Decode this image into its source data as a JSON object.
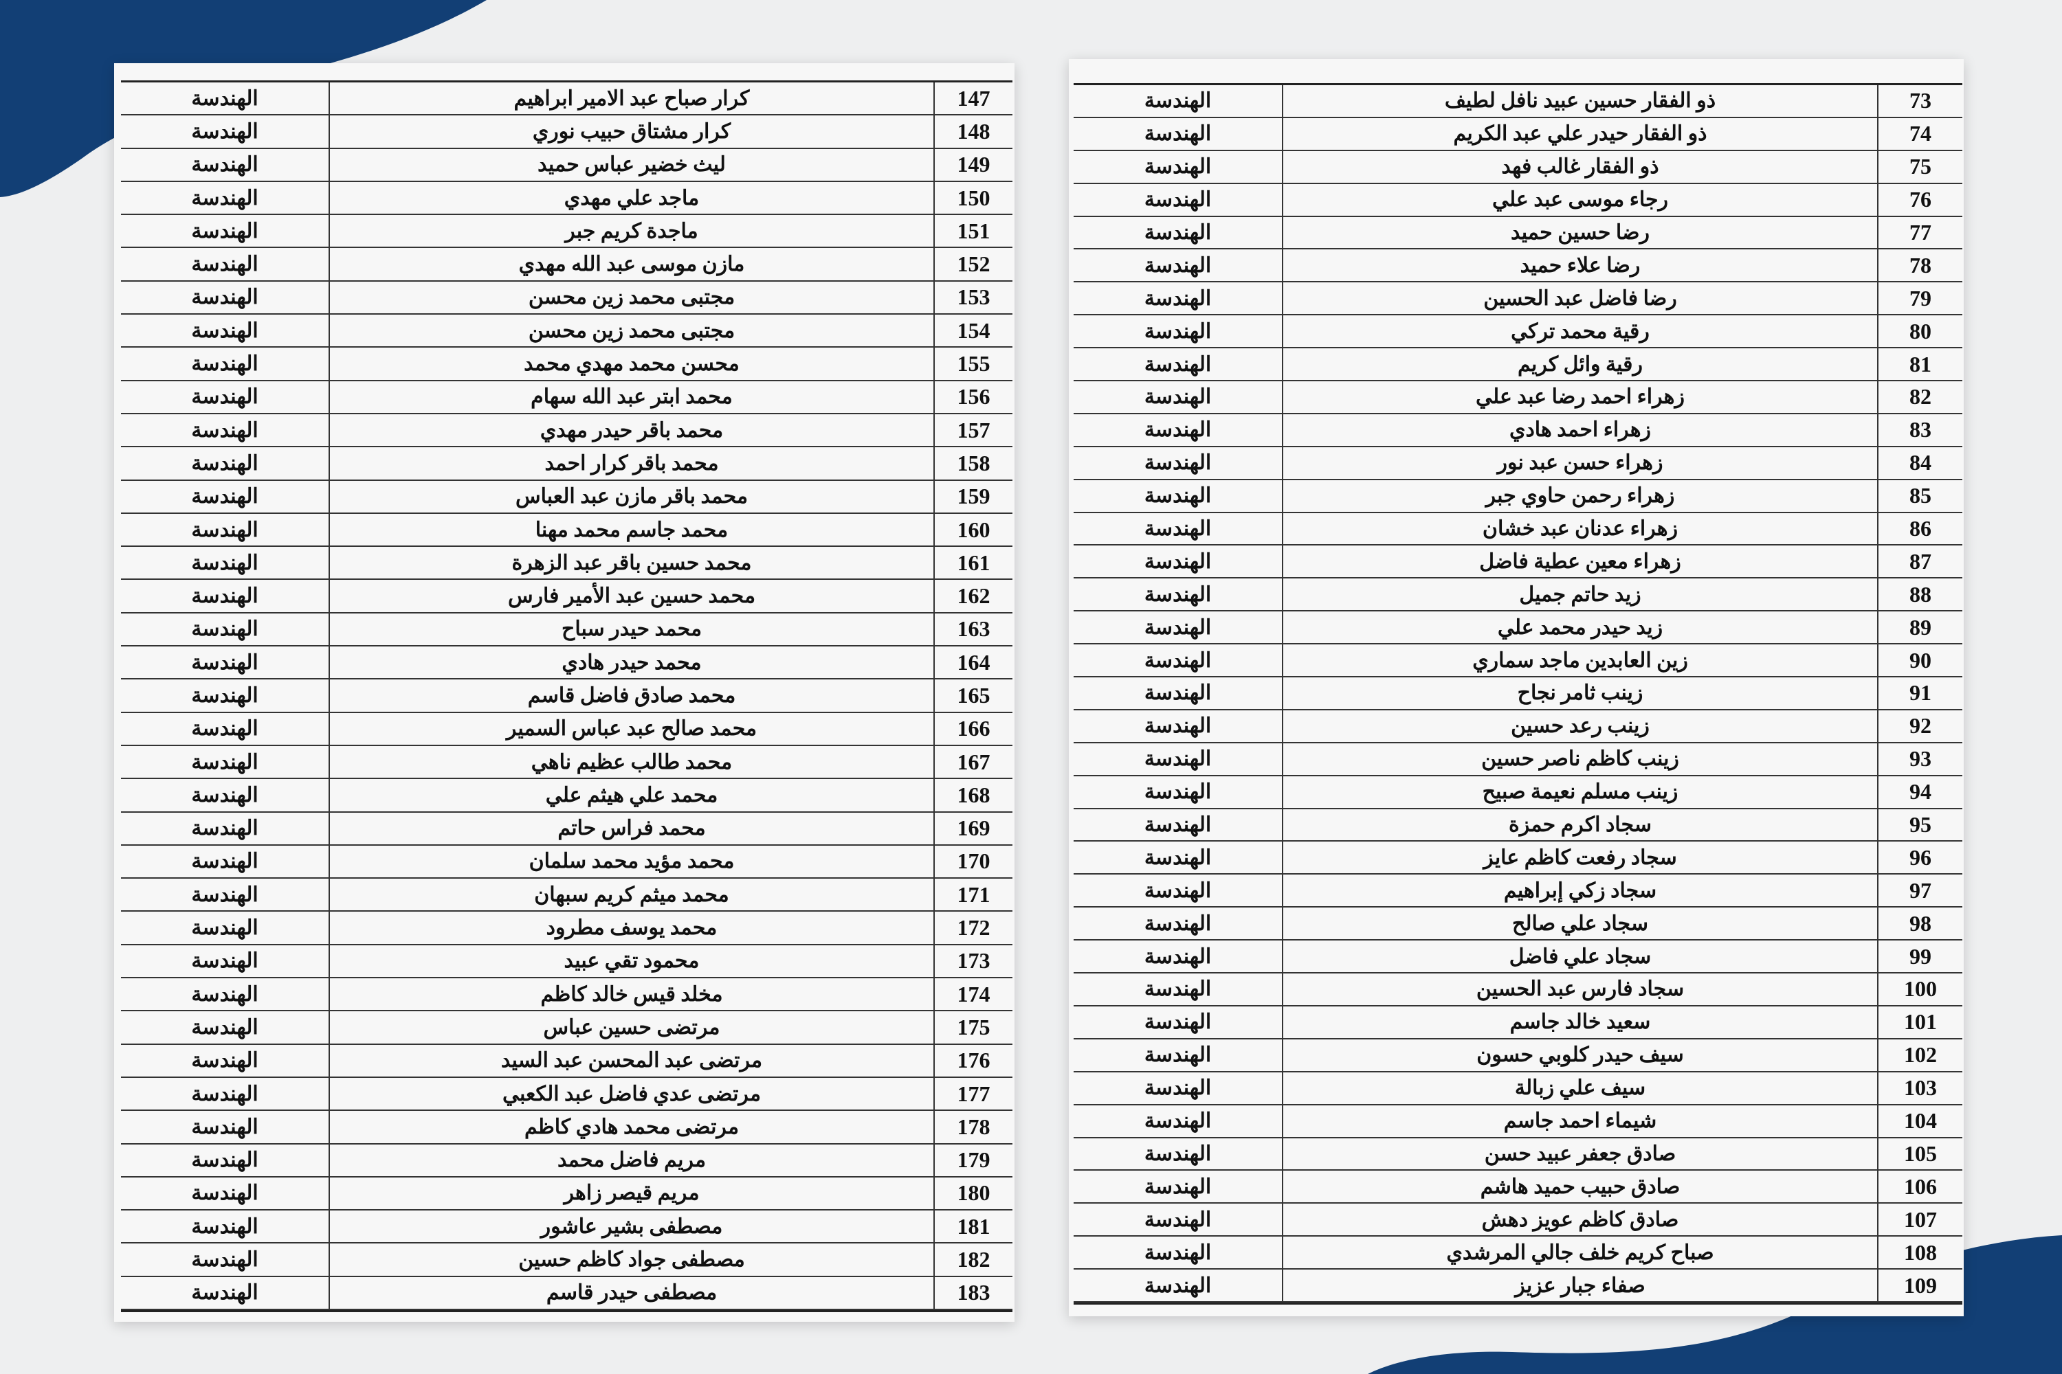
{
  "left_table": {
    "rows": [
      [
        147,
        "كرار صباح عبد الامير ابراهيم",
        "الهندسة"
      ],
      [
        148,
        "كرار مشتاق حبيب نوري",
        "الهندسة"
      ],
      [
        149,
        "ليث خضير عباس حميد",
        "الهندسة"
      ],
      [
        150,
        "ماجد علي مهدي",
        "الهندسة"
      ],
      [
        151,
        "ماجدة كريم جبر",
        "الهندسة"
      ],
      [
        152,
        "مازن موسى عبد الله مهدي",
        "الهندسة"
      ],
      [
        153,
        "مجتبى محمد زين محسن",
        "الهندسة"
      ],
      [
        154,
        "مجتبى محمد زين محسن",
        "الهندسة"
      ],
      [
        155,
        "محسن محمد مهدي محمد",
        "الهندسة"
      ],
      [
        156,
        "محمد ابتر عبد الله سهام",
        "الهندسة"
      ],
      [
        157,
        "محمد باقر حيدر مهدي",
        "الهندسة"
      ],
      [
        158,
        "محمد باقر كرار احمد",
        "الهندسة"
      ],
      [
        159,
        "محمد باقر مازن عبد العباس",
        "الهندسة"
      ],
      [
        160,
        "محمد جاسم محمد مهنا",
        "الهندسة"
      ],
      [
        161,
        "محمد حسين باقر عبد الزهرة",
        "الهندسة"
      ],
      [
        162,
        "محمد حسين عبد الأمير فارس",
        "الهندسة"
      ],
      [
        163,
        "محمد حيدر سباح",
        "الهندسة"
      ],
      [
        164,
        "محمد حيدر هادي",
        "الهندسة"
      ],
      [
        165,
        "محمد صادق فاضل قاسم",
        "الهندسة"
      ],
      [
        166,
        "محمد صالح عبد عباس السمير",
        "الهندسة"
      ],
      [
        167,
        "محمد طالب عظيم ناهي",
        "الهندسة"
      ],
      [
        168,
        "محمد علي هيثم علي",
        "الهندسة"
      ],
      [
        169,
        "محمد فراس حاتم",
        "الهندسة"
      ],
      [
        170,
        "محمد مؤيد محمد سلمان",
        "الهندسة"
      ],
      [
        171,
        "محمد ميثم كريم سبهان",
        "الهندسة"
      ],
      [
        172,
        "محمد يوسف مطرود",
        "الهندسة"
      ],
      [
        173,
        "محمود تقي عبيد",
        "الهندسة"
      ],
      [
        174,
        "مخلد قيس خالد كاظم",
        "الهندسة"
      ],
      [
        175,
        "مرتضى حسين عباس",
        "الهندسة"
      ],
      [
        176,
        "مرتضى عبد المحسن عبد السيد",
        "الهندسة"
      ],
      [
        177,
        "مرتضى عدي فاضل عبد الكعبي",
        "الهندسة"
      ],
      [
        178,
        "مرتضى محمد هادي كاظم",
        "الهندسة"
      ],
      [
        179,
        "مريم فاضل محمد",
        "الهندسة"
      ],
      [
        180,
        "مريم قيصر زاهر",
        "الهندسة"
      ],
      [
        181,
        "مصطفى بشير عاشور",
        "الهندسة"
      ],
      [
        182,
        "مصطفى جواد كاظم حسين",
        "الهندسة"
      ],
      [
        183,
        "مصطفى حيدر قاسم",
        "الهندسة"
      ]
    ]
  },
  "right_table": {
    "rows": [
      [
        73,
        "ذو الفقار حسين عبيد نافل لطيف",
        "الهندسة"
      ],
      [
        74,
        "ذو الفقار حيدر علي عبد الكريم",
        "الهندسة"
      ],
      [
        75,
        "ذو الفقار غالب فهد",
        "الهندسة"
      ],
      [
        76,
        "رجاء موسى عبد علي",
        "الهندسة"
      ],
      [
        77,
        "رضا حسين حميد",
        "الهندسة"
      ],
      [
        78,
        "رضا علاء حميد",
        "الهندسة"
      ],
      [
        79,
        "رضا فاضل عبد الحسين",
        "الهندسة"
      ],
      [
        80,
        "رقية محمد تركي",
        "الهندسة"
      ],
      [
        81,
        "رقية وائل كريم",
        "الهندسة"
      ],
      [
        82,
        "زهراء احمد رضا عبد علي",
        "الهندسة"
      ],
      [
        83,
        "زهراء احمد هادي",
        "الهندسة"
      ],
      [
        84,
        "زهراء حسن عبد نور",
        "الهندسة"
      ],
      [
        85,
        "زهراء رحمن حاوي جبر",
        "الهندسة"
      ],
      [
        86,
        "زهراء عدنان عبد خشان",
        "الهندسة"
      ],
      [
        87,
        "زهراء معين عطية فاضل",
        "الهندسة"
      ],
      [
        88,
        "زيد حاتم جميل",
        "الهندسة"
      ],
      [
        89,
        "زيد حيدر محمد علي",
        "الهندسة"
      ],
      [
        90,
        "زين العابدين ماجد سماري",
        "الهندسة"
      ],
      [
        91,
        "زينب ثامر نجاح",
        "الهندسة"
      ],
      [
        92,
        "زينب رعد حسين",
        "الهندسة"
      ],
      [
        93,
        "زينب كاظم ناصر حسين",
        "الهندسة"
      ],
      [
        94,
        "زينب مسلم نعيمة صبيح",
        "الهندسة"
      ],
      [
        95,
        "سجاد اكرم حمزة",
        "الهندسة"
      ],
      [
        96,
        "سجاد رفعت كاظم عايز",
        "الهندسة"
      ],
      [
        97,
        "سجاد زكي إبراهيم",
        "الهندسة"
      ],
      [
        98,
        "سجاد علي صالح",
        "الهندسة"
      ],
      [
        99,
        "سجاد علي فاضل",
        "الهندسة"
      ],
      [
        100,
        "سجاد فارس عبد الحسين",
        "الهندسة"
      ],
      [
        101,
        "سعيد خالد جاسم",
        "الهندسة"
      ],
      [
        102,
        "سيف حيدر كلوبي حسون",
        "الهندسة"
      ],
      [
        103,
        "سيف علي زبالة",
        "الهندسة"
      ],
      [
        104,
        "شيماء احمد جاسم",
        "الهندسة"
      ],
      [
        105,
        "صادق جعفر عبيد حسن",
        "الهندسة"
      ],
      [
        106,
        "صادق حبيب حميد هاشم",
        "الهندسة"
      ],
      [
        107,
        "صادق كاظم عويز دهش",
        "الهندسة"
      ],
      [
        108,
        "صباح كريم خلف جالي المرشدي",
        "الهندسة"
      ],
      [
        109,
        "صفاء جبار عزيز",
        "الهندسة"
      ]
    ]
  }
}
